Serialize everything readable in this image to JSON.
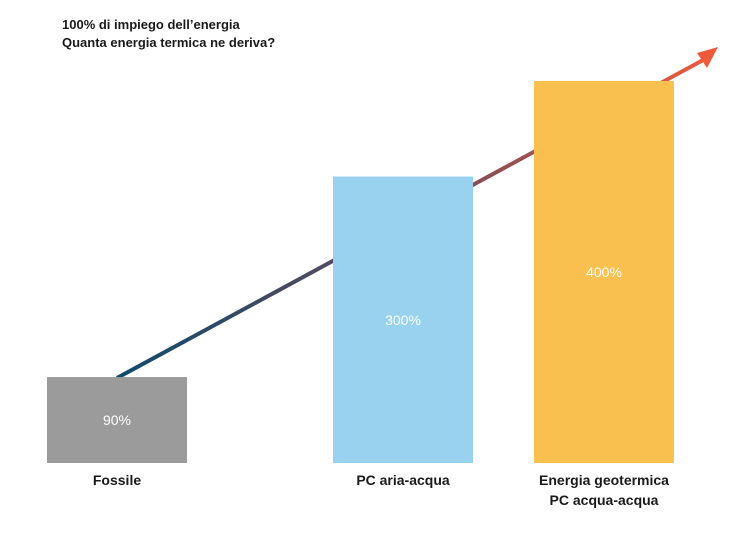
{
  "chart_data": {
    "type": "bar",
    "title_lines": [
      "100% di impiego dell’energia",
      "Quanta energia termica ne deriva?"
    ],
    "categories": [
      [
        "Fossile"
      ],
      [
        "PC aria-acqua"
      ],
      [
        "Energia geotermica",
        "PC acqua-acqua"
      ]
    ],
    "values": [
      90,
      300,
      400
    ],
    "value_labels": [
      "90%",
      "300%",
      "400%"
    ],
    "ylim": [
      0,
      400
    ],
    "grid": false,
    "legend": "none",
    "colors": {
      "bars": [
        "#9b9b9b",
        "#98d2ee",
        "#f9bf4f"
      ],
      "trend_start": "#0e4a6b",
      "trend_mid": "#6e4b5a",
      "trend_end": "#f05a3c"
    }
  }
}
